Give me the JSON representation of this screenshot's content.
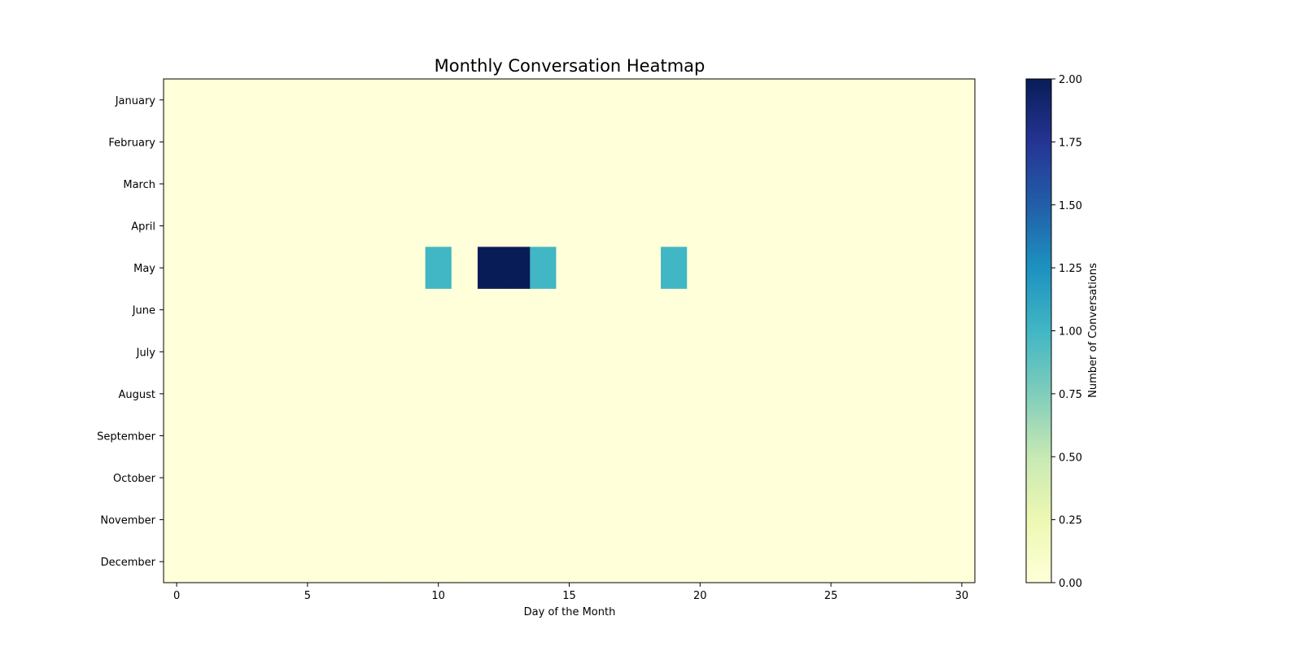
{
  "chart_data": {
    "type": "heatmap",
    "title": "Monthly Conversation Heatmap",
    "xlabel": "Day of the Month",
    "ylabel": "",
    "x_ticks": [
      0,
      5,
      10,
      15,
      20,
      25,
      30
    ],
    "x_range": [
      -0.5,
      30.5
    ],
    "rows": [
      "January",
      "February",
      "March",
      "April",
      "May",
      "June",
      "July",
      "August",
      "September",
      "October",
      "November",
      "December"
    ],
    "columns": [
      0,
      1,
      2,
      3,
      4,
      5,
      6,
      7,
      8,
      9,
      10,
      11,
      12,
      13,
      14,
      15,
      16,
      17,
      18,
      19,
      20,
      21,
      22,
      23,
      24,
      25,
      26,
      27,
      28,
      29,
      30
    ],
    "values": [
      [
        0,
        0,
        0,
        0,
        0,
        0,
        0,
        0,
        0,
        0,
        0,
        0,
        0,
        0,
        0,
        0,
        0,
        0,
        0,
        0,
        0,
        0,
        0,
        0,
        0,
        0,
        0,
        0,
        0,
        0,
        0
      ],
      [
        0,
        0,
        0,
        0,
        0,
        0,
        0,
        0,
        0,
        0,
        0,
        0,
        0,
        0,
        0,
        0,
        0,
        0,
        0,
        0,
        0,
        0,
        0,
        0,
        0,
        0,
        0,
        0,
        0,
        0,
        0
      ],
      [
        0,
        0,
        0,
        0,
        0,
        0,
        0,
        0,
        0,
        0,
        0,
        0,
        0,
        0,
        0,
        0,
        0,
        0,
        0,
        0,
        0,
        0,
        0,
        0,
        0,
        0,
        0,
        0,
        0,
        0,
        0
      ],
      [
        0,
        0,
        0,
        0,
        0,
        0,
        0,
        0,
        0,
        0,
        0,
        0,
        0,
        0,
        0,
        0,
        0,
        0,
        0,
        0,
        0,
        0,
        0,
        0,
        0,
        0,
        0,
        0,
        0,
        0,
        0
      ],
      [
        0,
        0,
        0,
        0,
        0,
        0,
        0,
        0,
        0,
        0,
        1,
        0,
        2,
        2,
        1,
        0,
        0,
        0,
        0,
        1,
        0,
        0,
        0,
        0,
        0,
        0,
        0,
        0,
        0,
        0,
        0
      ],
      [
        0,
        0,
        0,
        0,
        0,
        0,
        0,
        0,
        0,
        0,
        0,
        0,
        0,
        0,
        0,
        0,
        0,
        0,
        0,
        0,
        0,
        0,
        0,
        0,
        0,
        0,
        0,
        0,
        0,
        0,
        0
      ],
      [
        0,
        0,
        0,
        0,
        0,
        0,
        0,
        0,
        0,
        0,
        0,
        0,
        0,
        0,
        0,
        0,
        0,
        0,
        0,
        0,
        0,
        0,
        0,
        0,
        0,
        0,
        0,
        0,
        0,
        0,
        0
      ],
      [
        0,
        0,
        0,
        0,
        0,
        0,
        0,
        0,
        0,
        0,
        0,
        0,
        0,
        0,
        0,
        0,
        0,
        0,
        0,
        0,
        0,
        0,
        0,
        0,
        0,
        0,
        0,
        0,
        0,
        0,
        0
      ],
      [
        0,
        0,
        0,
        0,
        0,
        0,
        0,
        0,
        0,
        0,
        0,
        0,
        0,
        0,
        0,
        0,
        0,
        0,
        0,
        0,
        0,
        0,
        0,
        0,
        0,
        0,
        0,
        0,
        0,
        0,
        0
      ],
      [
        0,
        0,
        0,
        0,
        0,
        0,
        0,
        0,
        0,
        0,
        0,
        0,
        0,
        0,
        0,
        0,
        0,
        0,
        0,
        0,
        0,
        0,
        0,
        0,
        0,
        0,
        0,
        0,
        0,
        0,
        0
      ],
      [
        0,
        0,
        0,
        0,
        0,
        0,
        0,
        0,
        0,
        0,
        0,
        0,
        0,
        0,
        0,
        0,
        0,
        0,
        0,
        0,
        0,
        0,
        0,
        0,
        0,
        0,
        0,
        0,
        0,
        0,
        0
      ],
      [
        0,
        0,
        0,
        0,
        0,
        0,
        0,
        0,
        0,
        0,
        0,
        0,
        0,
        0,
        0,
        0,
        0,
        0,
        0,
        0,
        0,
        0,
        0,
        0,
        0,
        0,
        0,
        0,
        0,
        0,
        0
      ]
    ],
    "colorbar": {
      "label": "Number of Conversations",
      "range": [
        0,
        2
      ],
      "ticks": [
        "0.00",
        "0.25",
        "0.50",
        "0.75",
        "1.00",
        "1.25",
        "1.50",
        "1.75",
        "2.00"
      ],
      "colormap": "YlGnBu",
      "colors": [
        "#ffffd9",
        "#edf8b1",
        "#c7e9b4",
        "#7fcdbb",
        "#41b6c4",
        "#1d91c0",
        "#225ea8",
        "#253494",
        "#081d58"
      ]
    },
    "grid": false
  }
}
